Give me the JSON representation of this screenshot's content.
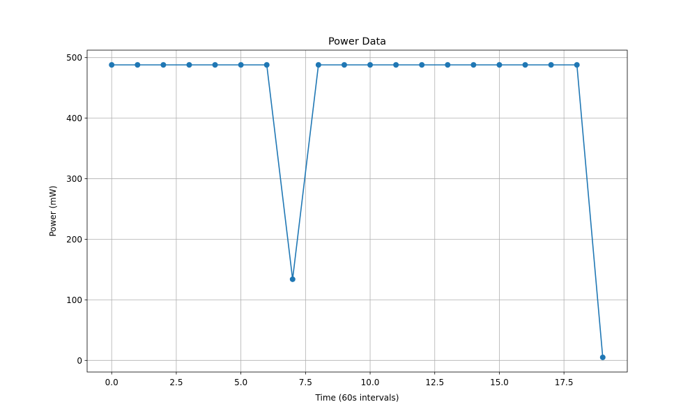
{
  "chart_data": {
    "type": "line",
    "title": "Power Data",
    "xlabel": "Time (60s intervals)",
    "ylabel": "Power (mW)",
    "xlim": [
      -0.95,
      19.95
    ],
    "ylim": [
      -19.2,
      512.3
    ],
    "xticks": [
      0.0,
      2.5,
      5.0,
      7.5,
      10.0,
      12.5,
      15.0,
      17.5
    ],
    "xtick_labels": [
      "0.0",
      "2.5",
      "5.0",
      "7.5",
      "10.0",
      "12.5",
      "15.0",
      "17.5"
    ],
    "yticks": [
      0,
      100,
      200,
      300,
      400,
      500
    ],
    "ytick_labels": [
      "0",
      "100",
      "200",
      "300",
      "400",
      "500"
    ],
    "grid": true,
    "series": [
      {
        "color": "#1f77b4",
        "marker": "circle",
        "x": [
          0,
          1,
          2,
          3,
          4,
          5,
          6,
          7,
          8,
          9,
          10,
          11,
          12,
          13,
          14,
          15,
          16,
          17,
          18,
          19
        ],
        "y": [
          488,
          488,
          488,
          488,
          488,
          488,
          488,
          134,
          488,
          488,
          488,
          488,
          488,
          488,
          488,
          488,
          488,
          488,
          488,
          5
        ]
      }
    ]
  }
}
